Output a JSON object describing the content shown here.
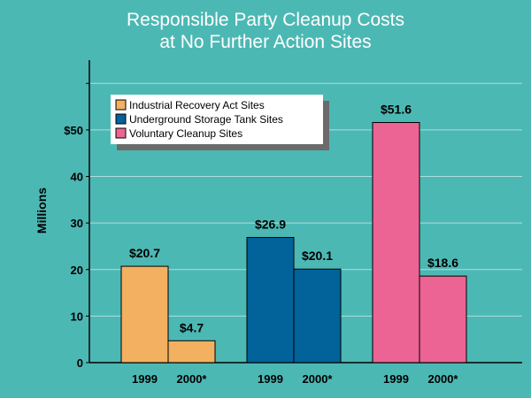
{
  "chart_data": {
    "type": "bar",
    "title": [
      "Responsible Party Cleanup Costs",
      "at No Further Action Sites"
    ],
    "ylabel": "Millions",
    "ylim": [
      0,
      65
    ],
    "y_ticks": [
      0,
      10,
      20,
      30,
      40,
      50
    ],
    "y_tick_labels": [
      "0",
      "10",
      "20",
      "30",
      "40",
      "$50"
    ],
    "grid": true,
    "legend_position": "top-left",
    "groups": [
      {
        "name": "Industrial Recovery Act Sites",
        "color": "#f2b060",
        "bars": [
          {
            "category": "1999",
            "value": 20.7,
            "label": "$20.7"
          },
          {
            "category": "2000*",
            "value": 4.7,
            "label": "$4.7"
          }
        ]
      },
      {
        "name": "Underground Storage Tank Sites",
        "color": "#02629a",
        "bars": [
          {
            "category": "1999",
            "value": 26.9,
            "label": "$26.9"
          },
          {
            "category": "2000*",
            "value": 20.1,
            "label": "$20.1"
          }
        ]
      },
      {
        "name": "Voluntary Cleanup Sites",
        "color": "#ec6494",
        "bars": [
          {
            "category": "1999",
            "value": 51.6,
            "label": "$51.6"
          },
          {
            "category": "2000*",
            "value": 18.6,
            "label": "$18.6"
          }
        ]
      }
    ]
  }
}
